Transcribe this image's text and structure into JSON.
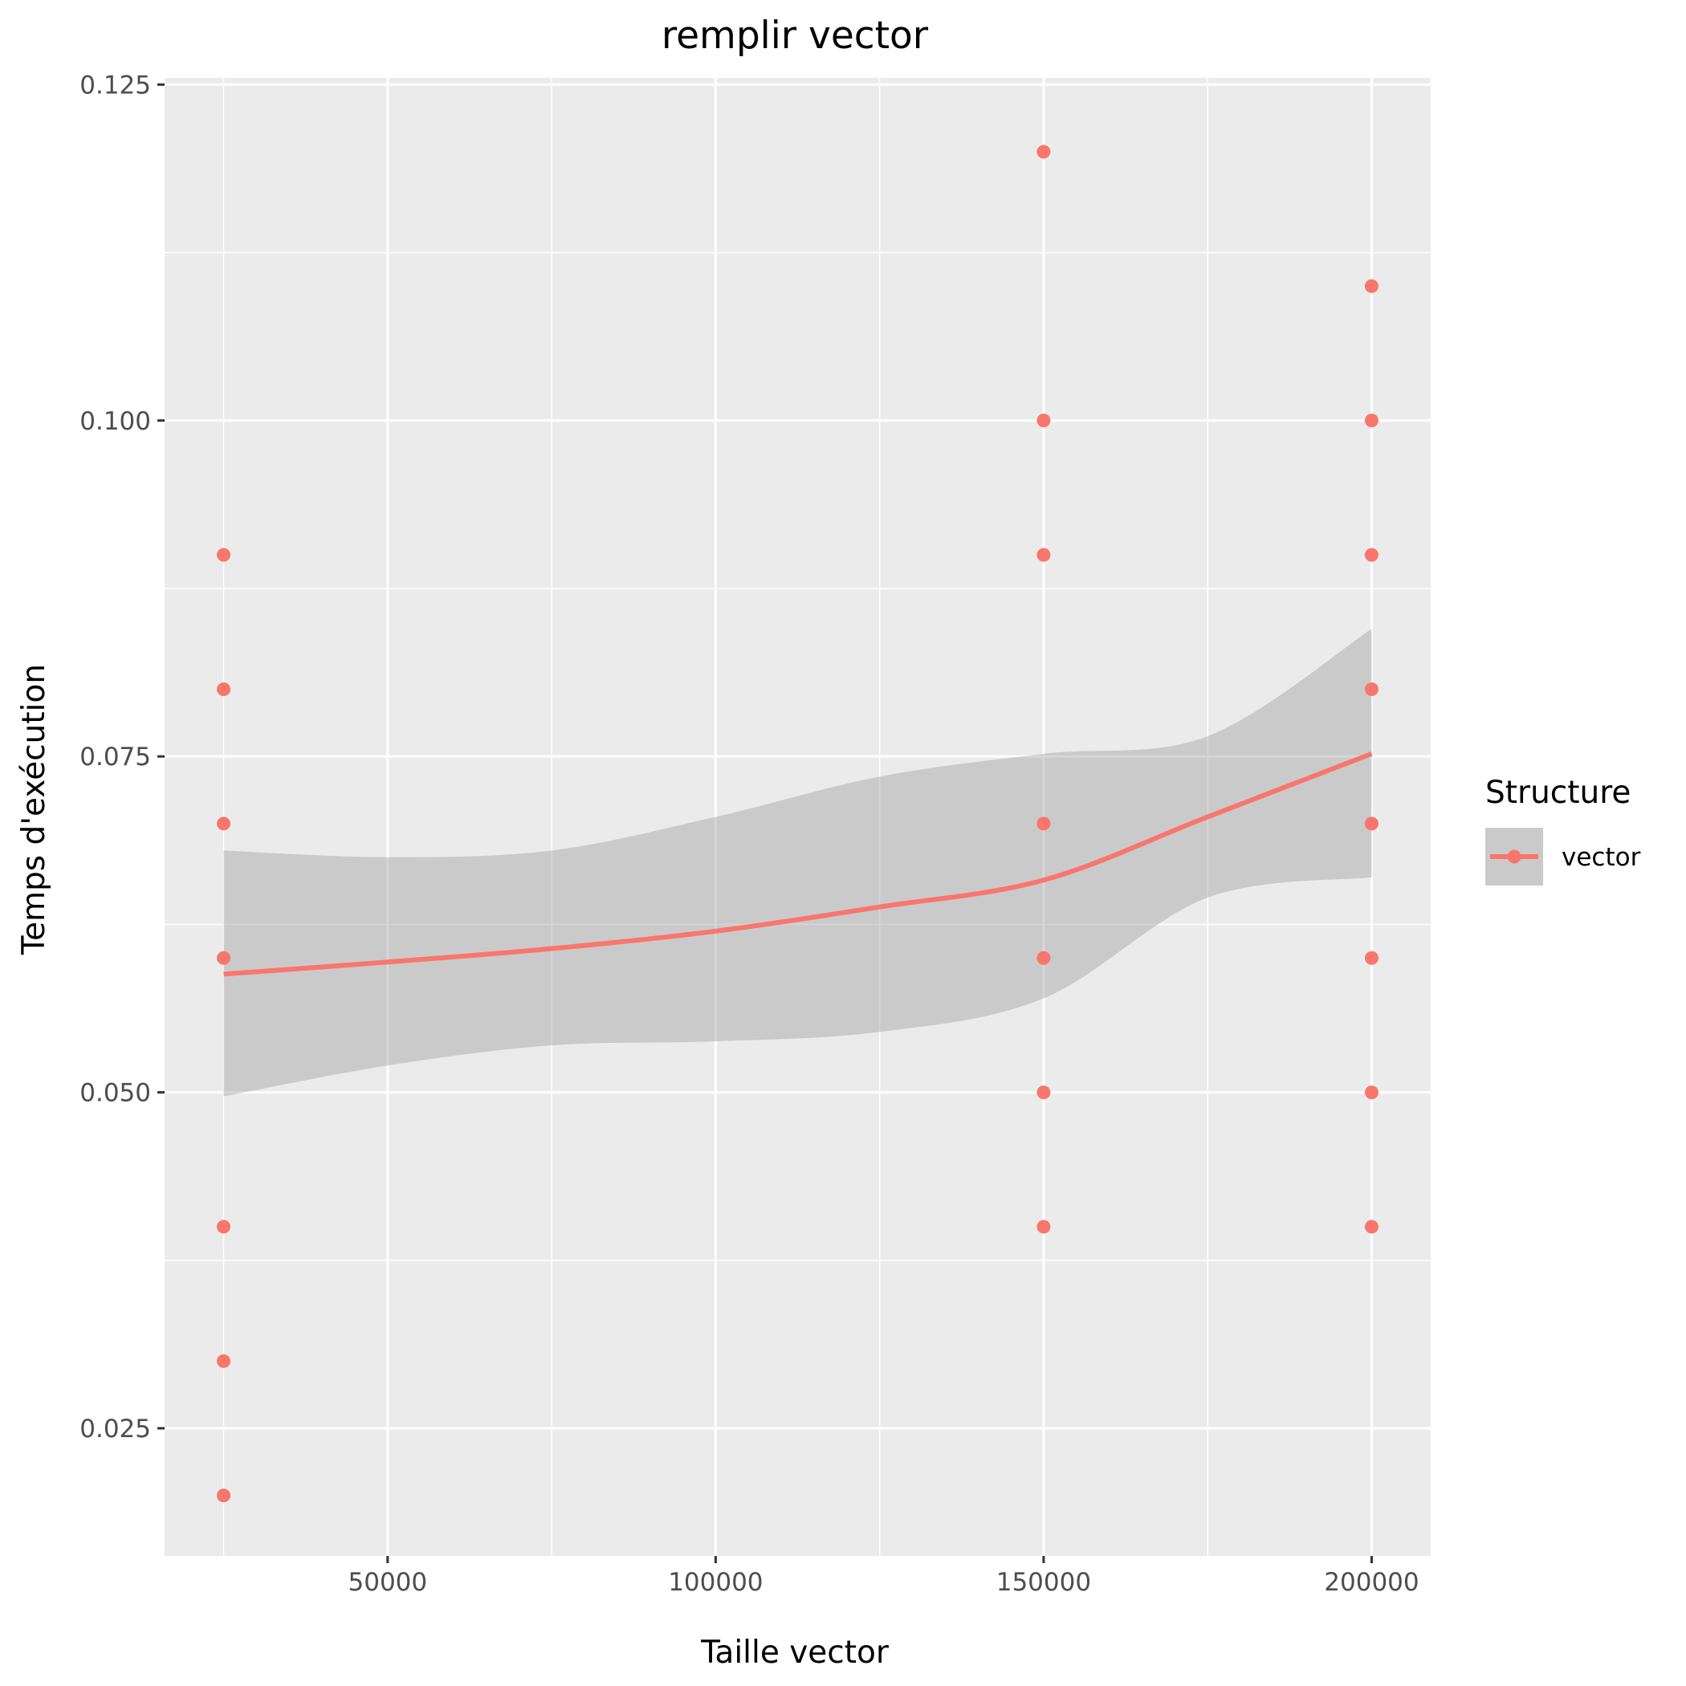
{
  "chart_data": {
    "type": "scatter",
    "title": "remplir vector",
    "xlabel": "Taille vector",
    "ylabel": "Temps d'exécution",
    "xlim": [
      16000,
      209000
    ],
    "ylim": [
      0.0155,
      0.1255
    ],
    "x_ticks": [
      50000,
      100000,
      150000,
      200000
    ],
    "x_tick_labels": [
      "50000",
      "100000",
      "150000",
      "200000"
    ],
    "x_minor_ticks": [
      25000,
      75000,
      125000,
      175000
    ],
    "y_ticks": [
      0.025,
      0.05,
      0.075,
      0.1,
      0.125
    ],
    "y_tick_labels": [
      "0.025",
      "0.050",
      "0.075",
      "0.100",
      "0.125"
    ],
    "y_minor_ticks": [
      0.0375,
      0.0625,
      0.0875,
      0.1125
    ],
    "grid": true,
    "legend": {
      "title": "Structure",
      "position": "right",
      "entries": [
        "vector"
      ]
    },
    "colors": {
      "series": "#f8766d",
      "ribbon": "#999999",
      "panel": "#ebebeb"
    },
    "series": [
      {
        "name": "vector",
        "points": [
          {
            "x": 25000,
            "y": 0.09
          },
          {
            "x": 25000,
            "y": 0.08
          },
          {
            "x": 25000,
            "y": 0.07
          },
          {
            "x": 25000,
            "y": 0.06
          },
          {
            "x": 25000,
            "y": 0.04
          },
          {
            "x": 25000,
            "y": 0.03
          },
          {
            "x": 25000,
            "y": 0.02
          },
          {
            "x": 150000,
            "y": 0.12
          },
          {
            "x": 150000,
            "y": 0.1
          },
          {
            "x": 150000,
            "y": 0.09
          },
          {
            "x": 150000,
            "y": 0.07
          },
          {
            "x": 150000,
            "y": 0.06
          },
          {
            "x": 150000,
            "y": 0.05
          },
          {
            "x": 150000,
            "y": 0.04
          },
          {
            "x": 200000,
            "y": 0.11
          },
          {
            "x": 200000,
            "y": 0.1
          },
          {
            "x": 200000,
            "y": 0.09
          },
          {
            "x": 200000,
            "y": 0.08
          },
          {
            "x": 200000,
            "y": 0.07
          },
          {
            "x": 200000,
            "y": 0.06
          },
          {
            "x": 200000,
            "y": 0.05
          },
          {
            "x": 200000,
            "y": 0.04
          }
        ],
        "smooth": [
          {
            "x": 25000,
            "y": 0.0588,
            "lo": 0.0497,
            "hi": 0.068
          },
          {
            "x": 50000,
            "y": 0.0597,
            "lo": 0.052,
            "hi": 0.0675
          },
          {
            "x": 75000,
            "y": 0.0607,
            "lo": 0.0535,
            "hi": 0.068
          },
          {
            "x": 100000,
            "y": 0.062,
            "lo": 0.0538,
            "hi": 0.0705
          },
          {
            "x": 125000,
            "y": 0.0638,
            "lo": 0.0545,
            "hi": 0.0735
          },
          {
            "x": 150000,
            "y": 0.0658,
            "lo": 0.057,
            "hi": 0.0752
          },
          {
            "x": 175000,
            "y": 0.0705,
            "lo": 0.0645,
            "hi": 0.0765
          },
          {
            "x": 200000,
            "y": 0.0752,
            "lo": 0.066,
            "hi": 0.0845
          }
        ]
      }
    ]
  }
}
